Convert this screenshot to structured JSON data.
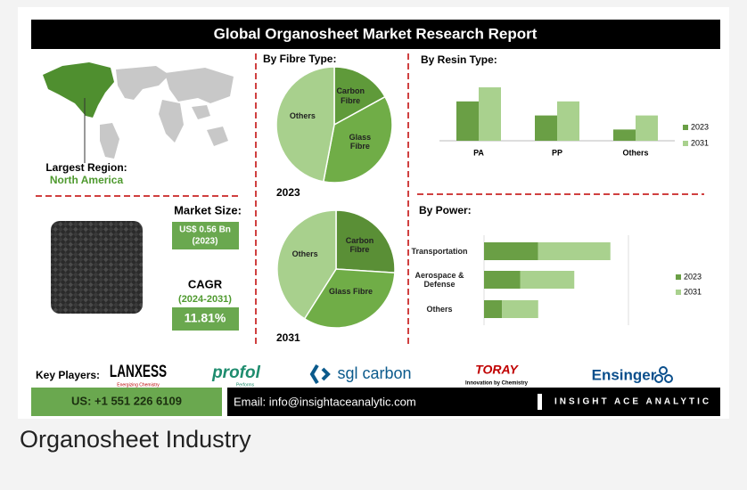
{
  "header": {
    "title": "Global Organosheet Market Research Report"
  },
  "region": {
    "label": "Largest Region:",
    "value": "North America"
  },
  "market": {
    "size_label": "Market Size:",
    "size_value": "US$ 0.56 Bn",
    "size_year": "(2023)",
    "cagr_label": "CAGR",
    "cagr_period": "(2024-2031)",
    "cagr_value": "11.81%"
  },
  "chart_data": [
    {
      "type": "pie",
      "title": "By Fibre Type:",
      "caption": "2023",
      "categories": [
        "Carbon Fibre",
        "Glass Fibre",
        "Others"
      ],
      "values": [
        17,
        36,
        47
      ],
      "colors": [
        "#5f9a3a",
        "#70ad47",
        "#a8d08d"
      ]
    },
    {
      "type": "pie",
      "caption": "2031",
      "categories": [
        "Carbon Fibre",
        "Glass Fibre",
        "Others"
      ],
      "values": [
        26,
        33,
        41
      ],
      "colors": [
        "#5a8f36",
        "#70ad47",
        "#a8d08d"
      ]
    },
    {
      "type": "bar",
      "title": "By Resin Type:",
      "categories": [
        "PA",
        "PP",
        "Others"
      ],
      "series": [
        {
          "name": "2023",
          "color": "#6a9f45",
          "values": [
            28,
            18,
            8
          ]
        },
        {
          "name": "2031",
          "color": "#a9d18e",
          "values": [
            38,
            28,
            18
          ]
        }
      ],
      "ylim": [
        0,
        45
      ],
      "legend": "right"
    },
    {
      "type": "hbar",
      "stacked": true,
      "title": "By Power:",
      "categories": [
        "Transportation",
        "Aerospace & Defense",
        "Others"
      ],
      "series": [
        {
          "name": "2023",
          "color": "#6a9f45",
          "values": [
            15,
            10,
            5
          ]
        },
        {
          "name": "2031",
          "color": "#a9d18e",
          "values": [
            20,
            15,
            10
          ]
        }
      ],
      "xlim": [
        0,
        40
      ],
      "legend": "right"
    }
  ],
  "key_players": {
    "label": "Key Players:",
    "players": [
      {
        "name": "LANXESS",
        "tagline": "Energizing Chemistry"
      },
      {
        "name": "profol",
        "tagline": "Performs"
      },
      {
        "name": "sgl carbon"
      },
      {
        "name": "TORAY",
        "tagline": "Innovation by Chemistry"
      },
      {
        "name": "Ensinger"
      }
    ]
  },
  "footer": {
    "phone": "US: +1 551 226 6109",
    "email": "Email: info@insightaceanalytic.com",
    "brand": "INSIGHT ACE ANALYTIC"
  },
  "caption": "Organosheet Industry"
}
